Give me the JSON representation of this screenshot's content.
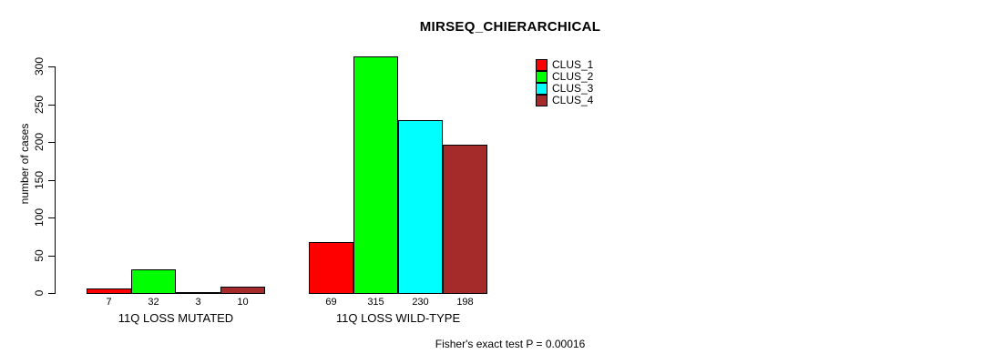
{
  "chart_data": {
    "type": "bar",
    "title": "MIRSEQ_CHIERARCHICAL",
    "xlabel": "",
    "ylabel": "number of cases",
    "ylim": [
      0,
      300
    ],
    "yticks": [
      0,
      50,
      100,
      150,
      200,
      250,
      300
    ],
    "categories": [
      "11Q LOSS MUTATED",
      "11Q LOSS WILD-TYPE"
    ],
    "series": [
      {
        "name": "CLUS_1",
        "color": "#FF0000",
        "values": [
          7,
          69
        ]
      },
      {
        "name": "CLUS_2",
        "color": "#00FF00",
        "values": [
          32,
          315
        ]
      },
      {
        "name": "CLUS_3",
        "color": "#00FFFF",
        "values": [
          3,
          230
        ]
      },
      {
        "name": "CLUS_4",
        "color": "#A52A2A",
        "values": [
          10,
          198
        ]
      }
    ],
    "bar_value_labels_shown": true,
    "legend_position": "top-right",
    "legend_entries": [
      "CLUS_1",
      "CLUS_2",
      "CLUS_3",
      "CLUS_4"
    ],
    "grid": false,
    "annotation": "Fisher's exact test P = 0.00016"
  }
}
